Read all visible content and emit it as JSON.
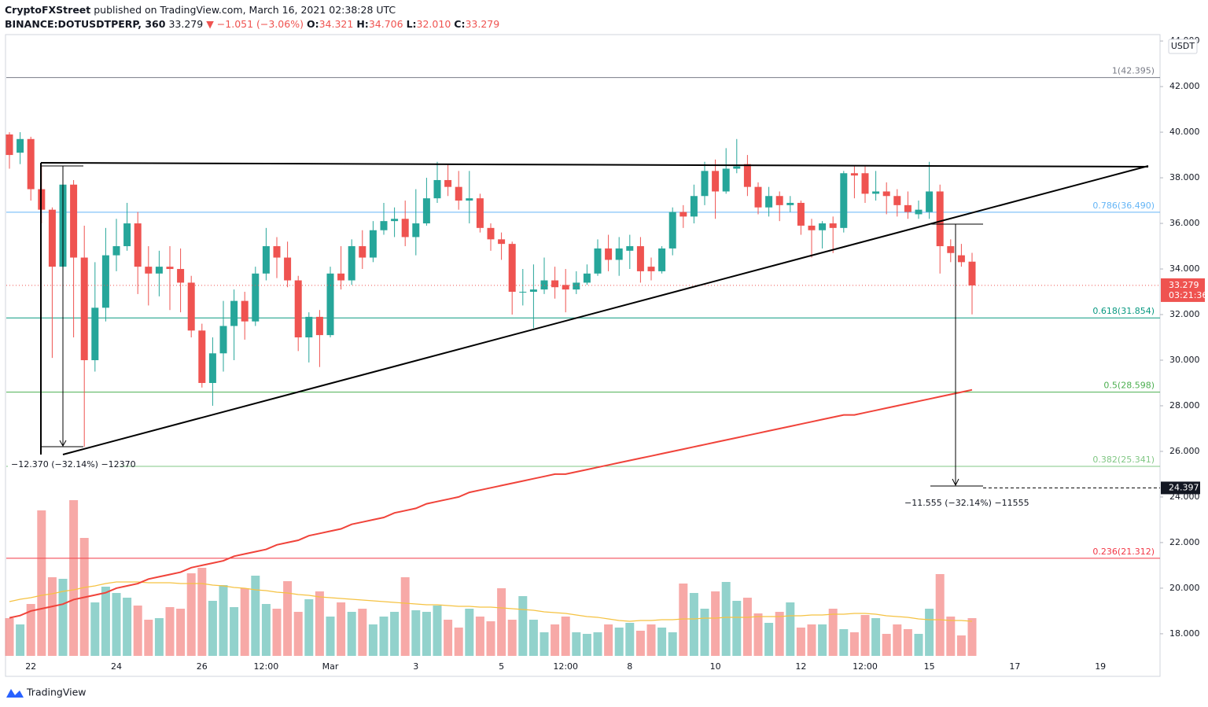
{
  "header": {
    "publisher": "CryptoFXStreet",
    "published": "published on TradingView.com, March 16, 2021 02:38:28 UTC",
    "symbol": "BINANCE:DOTUSDTPERP, 360",
    "last": "33.279",
    "change": "▼ −1.051 (−3.06%)",
    "o_label": "O:",
    "o": "34.321",
    "h_label": "H:",
    "h": "34.706",
    "l_label": "L:",
    "l": "32.010",
    "c_label": "C:",
    "c": "33.279"
  },
  "footer": {
    "brand": "TradingView"
  },
  "chart_data": {
    "type": "candlestick",
    "categories": [
      null,
      null,
      "22",
      null,
      null,
      null,
      null,
      null,
      null,
      null,
      "24",
      null,
      null,
      null,
      null,
      null,
      null,
      null,
      "26",
      null,
      null,
      null,
      null,
      null,
      "12:00",
      null,
      null,
      null,
      null,
      null,
      "Mar",
      null,
      null,
      null,
      null,
      null,
      null,
      null,
      "3",
      null,
      null,
      null,
      null,
      null,
      null,
      null,
      "5",
      null,
      null,
      null,
      null,
      null,
      "12:00",
      null,
      null,
      null,
      null,
      null,
      "8",
      null,
      null,
      null,
      null,
      null,
      null,
      null,
      "10",
      null,
      null,
      null,
      null,
      null,
      null,
      null,
      "12",
      null,
      null,
      null,
      null,
      null,
      "12:00",
      null,
      null,
      null,
      null,
      null,
      "15",
      null,
      null,
      null,
      null,
      null,
      null,
      null,
      "17",
      null,
      null,
      null,
      null,
      null,
      null,
      null,
      "19",
      null,
      null,
      null,
      null,
      null
    ],
    "open": [
      39.9,
      39.1,
      39.7,
      37.5,
      36.6,
      34.1,
      37.7,
      34.5,
      30.0,
      32.3,
      34.6,
      35.0,
      36.0,
      34.1,
      33.8,
      34.1,
      34.0,
      33.4,
      31.3,
      29.0,
      30.3,
      31.5,
      32.6,
      31.7,
      33.8,
      35.0,
      34.5,
      33.5,
      31.0,
      31.9,
      31.1,
      33.8,
      33.5,
      35.0,
      34.5,
      35.7,
      36.1,
      36.2,
      35.4,
      36.0,
      37.1,
      37.9,
      37.6,
      37.0,
      37.1,
      35.8,
      35.3,
      35.1,
      33.0,
      33.0,
      33.1,
      33.5,
      33.3,
      33.1,
      33.4,
      33.8,
      34.9,
      34.4,
      34.8,
      35.0,
      34.1,
      33.9,
      34.9,
      36.5,
      36.3,
      37.2,
      38.3,
      37.4,
      38.4,
      38.6,
      37.6,
      36.7,
      37.2,
      36.8,
      36.9,
      35.9,
      35.7,
      36.0,
      35.8,
      38.2,
      38.2,
      37.3,
      37.4,
      37.2,
      36.8,
      36.4,
      36.5,
      37.4,
      35.0,
      34.6,
      34.321,
      null,
      null,
      null,
      null,
      null,
      null,
      null,
      null,
      null,
      null,
      null,
      null,
      null,
      null,
      null,
      null,
      null
    ],
    "high": [
      40.0,
      40.0,
      39.8,
      38.5,
      36.7,
      38.3,
      37.9,
      35.9,
      34.3,
      35.8,
      36.2,
      36.9,
      36.5,
      35.0,
      34.8,
      35.0,
      34.9,
      33.7,
      31.6,
      31.0,
      32.6,
      33.1,
      33.0,
      34.1,
      35.8,
      35.4,
      35.2,
      33.7,
      32.1,
      32.2,
      34.1,
      35.0,
      35.3,
      35.7,
      36.1,
      36.9,
      36.7,
      37.0,
      37.5,
      38.0,
      38.7,
      38.6,
      38.3,
      38.3,
      37.3,
      36.0,
      35.6,
      35.2,
      34.0,
      34.2,
      34.5,
      34.1,
      34.0,
      33.9,
      34.2,
      35.3,
      35.5,
      35.4,
      35.5,
      35.4,
      34.5,
      35.0,
      36.7,
      36.8,
      37.7,
      38.7,
      38.8,
      39.3,
      39.7,
      39.0,
      37.8,
      37.6,
      37.4,
      37.2,
      37.0,
      36.2,
      36.1,
      36.3,
      38.3,
      38.5,
      38.5,
      38.3,
      37.8,
      37.5,
      37.4,
      37.0,
      38.7,
      37.7,
      35.3,
      35.1,
      34.706,
      null,
      null,
      null,
      null,
      null,
      null,
      null,
      null,
      null,
      null,
      null,
      null,
      null,
      null,
      null,
      null,
      null
    ],
    "low": [
      38.4,
      38.6,
      37.0,
      36.0,
      30.1,
      34.0,
      31.0,
      26.2,
      29.5,
      31.7,
      33.9,
      34.8,
      32.9,
      32.4,
      32.8,
      32.2,
      32.1,
      31.0,
      28.8,
      28.0,
      29.5,
      30.0,
      30.9,
      31.5,
      33.5,
      33.6,
      33.2,
      30.4,
      29.9,
      29.7,
      31.0,
      33.1,
      33.3,
      34.0,
      34.3,
      35.5,
      35.4,
      35.0,
      34.6,
      35.9,
      36.9,
      37.2,
      36.6,
      36.0,
      35.6,
      34.8,
      34.4,
      32.0,
      32.4,
      31.4,
      32.9,
      32.7,
      32.1,
      32.9,
      33.3,
      33.7,
      33.9,
      33.7,
      34.0,
      33.4,
      33.5,
      33.8,
      34.6,
      35.8,
      36.0,
      36.8,
      36.2,
      37.3,
      38.2,
      37.2,
      36.4,
      36.3,
      36.1,
      36.5,
      35.5,
      34.5,
      34.9,
      34.7,
      35.6,
      37.1,
      36.9,
      37.0,
      36.4,
      36.3,
      36.2,
      36.2,
      36.2,
      33.8,
      34.3,
      34.1,
      32.01,
      null,
      null,
      null,
      null,
      null,
      null,
      null,
      null,
      null,
      null,
      null,
      null,
      null,
      null,
      null,
      null,
      null
    ],
    "close": [
      39.0,
      39.7,
      37.5,
      36.6,
      34.1,
      37.7,
      34.5,
      30.0,
      32.3,
      34.6,
      35.0,
      36.0,
      34.1,
      33.8,
      34.1,
      34.0,
      33.4,
      31.3,
      29.0,
      30.3,
      31.5,
      32.6,
      31.7,
      33.8,
      35.0,
      34.5,
      33.5,
      31.0,
      31.9,
      31.1,
      33.8,
      33.5,
      35.0,
      34.5,
      35.7,
      36.1,
      36.2,
      35.4,
      36.0,
      37.1,
      37.9,
      37.6,
      37.0,
      37.1,
      35.8,
      35.3,
      35.1,
      33.0,
      33.0,
      33.1,
      33.5,
      33.2,
      33.1,
      33.4,
      33.8,
      34.9,
      34.4,
      34.9,
      35.0,
      33.9,
      33.9,
      34.9,
      36.5,
      36.3,
      37.2,
      38.3,
      37.4,
      38.4,
      38.5,
      37.6,
      36.7,
      37.2,
      36.8,
      36.9,
      35.9,
      35.7,
      36.0,
      35.8,
      38.2,
      38.1,
      37.3,
      37.4,
      37.2,
      36.8,
      36.5,
      36.6,
      37.4,
      35.0,
      34.7,
      34.3,
      33.279,
      null,
      null,
      null,
      null,
      null,
      null,
      null,
      null,
      null,
      null,
      null,
      null,
      null,
      null,
      null,
      null,
      null
    ],
    "volume": [
      48,
      40,
      66,
      185,
      100,
      98,
      198,
      150,
      68,
      88,
      80,
      74,
      64,
      46,
      48,
      62,
      60,
      105,
      112,
      70,
      90,
      62,
      86,
      102,
      66,
      60,
      95,
      56,
      72,
      82,
      50,
      68,
      56,
      60,
      40,
      50,
      56,
      100,
      58,
      56,
      64,
      46,
      36,
      60,
      50,
      44,
      86,
      46,
      76,
      46,
      30,
      40,
      50,
      30,
      28,
      30,
      40,
      36,
      42,
      32,
      40,
      36,
      30,
      92,
      80,
      60,
      82,
      94,
      70,
      74,
      54,
      42,
      56,
      68,
      36,
      40,
      40,
      60,
      34,
      30,
      52,
      48,
      28,
      40,
      34,
      28,
      60,
      104,
      50,
      26,
      48,
      null,
      null,
      null,
      null,
      null,
      null,
      null,
      null,
      null,
      null,
      null,
      null,
      null,
      null,
      null,
      null,
      null
    ],
    "ma": [
      18.7,
      18.8,
      19.0,
      19.1,
      19.2,
      19.3,
      19.5,
      19.6,
      19.7,
      19.8,
      20.0,
      20.1,
      20.2,
      20.4,
      20.5,
      20.6,
      20.7,
      20.9,
      21.0,
      21.1,
      21.2,
      21.4,
      21.5,
      21.6,
      21.7,
      21.9,
      22.0,
      22.1,
      22.3,
      22.4,
      22.5,
      22.6,
      22.8,
      22.9,
      23.0,
      23.1,
      23.3,
      23.4,
      23.5,
      23.7,
      23.8,
      23.9,
      24.0,
      24.2,
      24.3,
      24.4,
      24.5,
      24.6,
      24.7,
      24.8,
      24.9,
      25.0,
      25.0,
      25.1,
      25.2,
      25.3,
      25.4,
      25.5,
      25.6,
      25.7,
      25.8,
      25.9,
      26.0,
      26.1,
      26.2,
      26.3,
      26.4,
      26.5,
      26.6,
      26.7,
      26.8,
      26.9,
      27.0,
      27.1,
      27.2,
      27.3,
      27.4,
      27.5,
      27.6,
      27.6,
      27.7,
      27.8,
      27.9,
      28.0,
      28.1,
      28.2,
      28.3,
      28.4,
      28.5,
      28.6,
      28.7,
      null,
      null,
      null,
      null,
      null,
      null,
      null,
      null,
      null,
      null,
      null,
      null,
      null,
      null,
      null,
      null,
      null
    ],
    "volume_ma": [
      69,
      72,
      74,
      77,
      79,
      82,
      84,
      87,
      89,
      92,
      94,
      94,
      94,
      93,
      93,
      93,
      92,
      92,
      92,
      90,
      89,
      87,
      86,
      84,
      83,
      81,
      80,
      78,
      77,
      75,
      74,
      73,
      72,
      71,
      70,
      69,
      68,
      67,
      66,
      65,
      65,
      64,
      63,
      63,
      62,
      62,
      61,
      60,
      59,
      58,
      56,
      55,
      54,
      52,
      50,
      49,
      47,
      45,
      44,
      45,
      45,
      46,
      46,
      47,
      47,
      48,
      48,
      49,
      49,
      49,
      50,
      50,
      50,
      51,
      51,
      52,
      52,
      53,
      53,
      54,
      54,
      53,
      51,
      50,
      49,
      47,
      46,
      46,
      45,
      45,
      44,
      null,
      null,
      null,
      null,
      null,
      null,
      null,
      null,
      null,
      null,
      null,
      null,
      null,
      null,
      null,
      null,
      null
    ],
    "up_color": "#26a69a",
    "down_color": "#ef5350",
    "ma_color": "#f0433a",
    "volume_ma_color": "#f5c242",
    "ylim": [
      17.03,
      44.28
    ],
    "yticks": [
      {
        "value": 18,
        "label": "18.000"
      },
      {
        "value": 20,
        "label": "20.000"
      },
      {
        "value": 22,
        "label": "22.000"
      },
      {
        "value": 24,
        "label": "24.000"
      },
      {
        "value": 26,
        "label": "26.000"
      },
      {
        "value": 28,
        "label": "28.000"
      },
      {
        "value": 30,
        "label": "30.000"
      },
      {
        "value": 32,
        "label": "32.000"
      },
      {
        "value": 34,
        "label": "34.000"
      },
      {
        "value": 36,
        "label": "36.000"
      },
      {
        "value": 38,
        "label": "38.000"
      },
      {
        "value": 40,
        "label": "40.000"
      },
      {
        "value": 42,
        "label": "42.000"
      },
      {
        "value": 44,
        "label": "44.000"
      }
    ],
    "grid": false,
    "axis_unit": "USDT",
    "last_price": 33.279,
    "countdown": "03:21:36",
    "target_price": 24.397,
    "fib_levels": [
      {
        "label": "1(42.395)",
        "value": 42.395,
        "color": "#787b86"
      },
      {
        "label": "0.786(36.490)",
        "value": 36.49,
        "color": "#64b5f6"
      },
      {
        "label": "0.618(31.854)",
        "value": 31.854,
        "color": "#089981"
      },
      {
        "label": "0.5(28.598)",
        "value": 28.598,
        "color": "#4caf50"
      },
      {
        "label": "0.382(25.341)",
        "value": 25.341,
        "color": "#81c784"
      },
      {
        "label": "0.236(21.312)",
        "value": 21.312,
        "color": "#f23645"
      }
    ],
    "annotations": [
      "−12.370 (−32.14%) −12370",
      "−11.555 (−32.14%) −11555"
    ]
  }
}
